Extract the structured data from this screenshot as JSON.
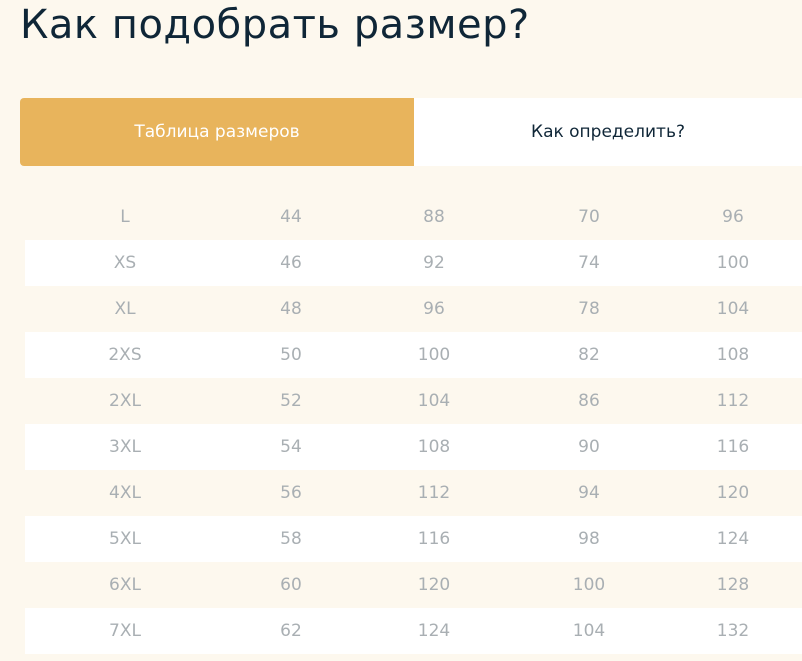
{
  "title": "Как подобрать размер?",
  "tabs": [
    {
      "label": "Таблица размеров",
      "active": true
    },
    {
      "label": "Как определить?",
      "active": false
    }
  ],
  "colors": {
    "accent": "#e8b45c",
    "background": "#fdf8ee",
    "title": "#0f2637",
    "cell_text": "#a9afb3"
  },
  "rows": [
    [
      "L",
      "44",
      "88",
      "70",
      "96"
    ],
    [
      "XS",
      "46",
      "92",
      "74",
      "100"
    ],
    [
      "XL",
      "48",
      "96",
      "78",
      "104"
    ],
    [
      "2XS",
      "50",
      "100",
      "82",
      "108"
    ],
    [
      "2XL",
      "52",
      "104",
      "86",
      "112"
    ],
    [
      "3XL",
      "54",
      "108",
      "90",
      "116"
    ],
    [
      "4XL",
      "56",
      "112",
      "94",
      "120"
    ],
    [
      "5XL",
      "58",
      "116",
      "98",
      "124"
    ],
    [
      "6XL",
      "60",
      "120",
      "100",
      "128"
    ],
    [
      "7XL",
      "62",
      "124",
      "104",
      "132"
    ]
  ]
}
